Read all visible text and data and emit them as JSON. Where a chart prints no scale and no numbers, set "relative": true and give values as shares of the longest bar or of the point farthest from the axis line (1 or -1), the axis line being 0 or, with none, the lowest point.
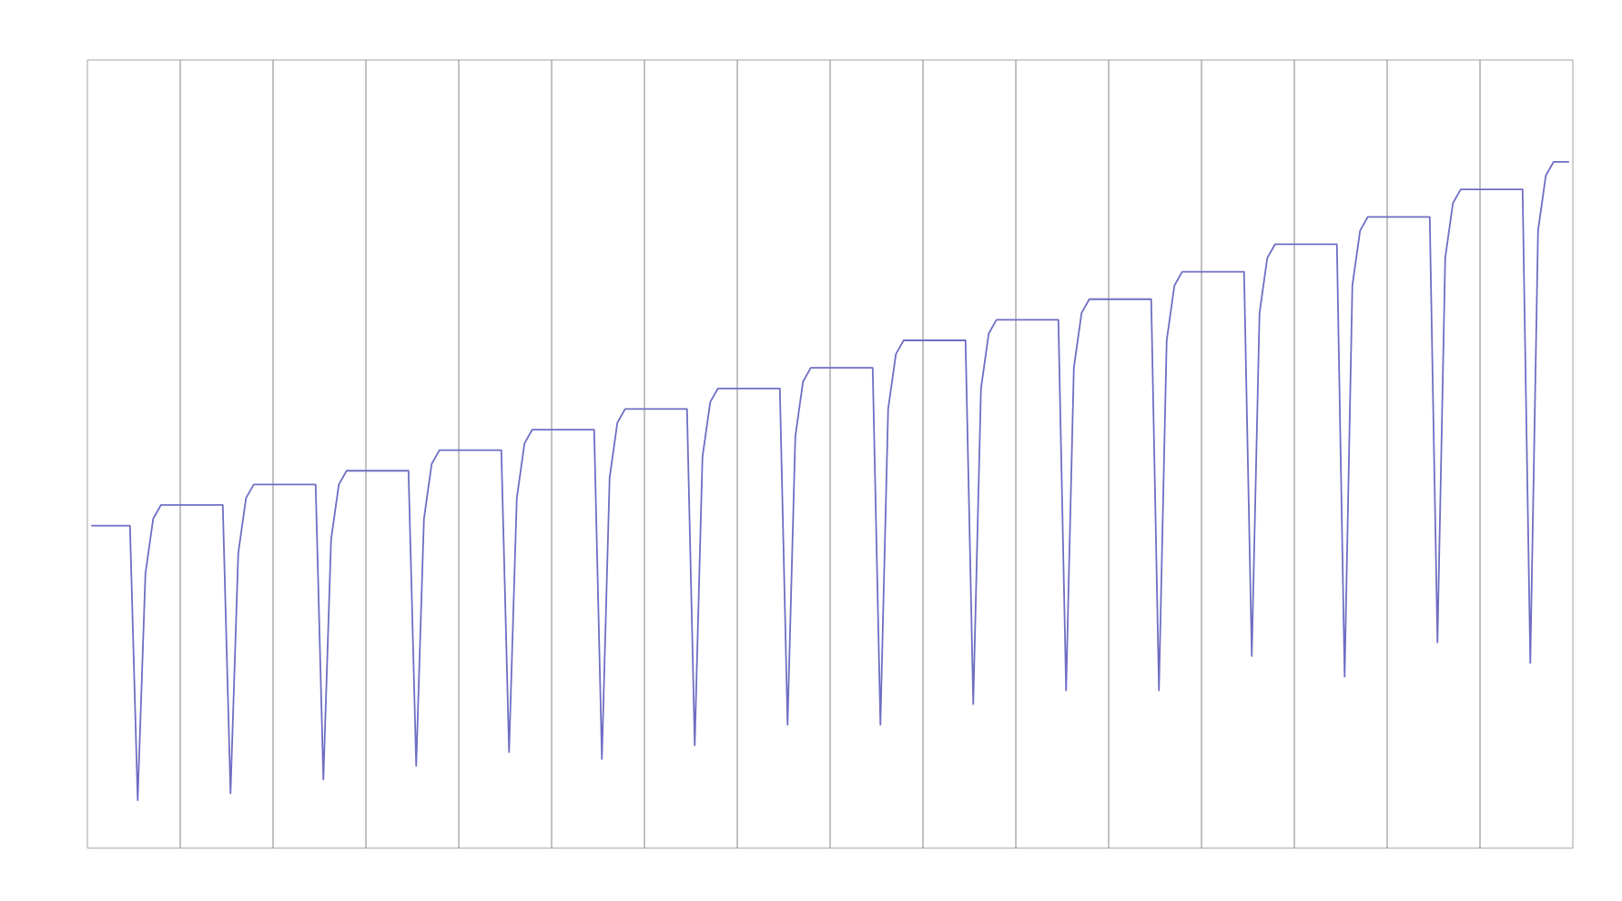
{
  "chart_data": {
    "type": "line",
    "relative": true,
    "grid": "x",
    "marker": "none",
    "line_style": "solid",
    "categories": [
      null,
      null,
      null,
      null,
      null,
      null,
      null,
      null,
      null,
      null,
      null,
      null,
      null,
      null,
      null,
      null,
      null,
      null,
      null,
      null,
      null,
      null,
      null,
      null,
      null,
      null,
      null,
      null,
      null,
      null,
      null,
      null,
      null,
      null,
      null,
      null,
      null,
      null,
      null,
      null,
      null,
      null,
      null,
      null,
      null,
      null,
      null,
      null,
      null,
      null,
      null,
      null,
      null,
      null,
      null,
      null,
      null,
      null,
      null,
      null,
      null,
      null,
      null,
      null,
      null,
      null,
      null,
      null,
      null,
      null,
      null,
      null,
      null,
      null,
      null,
      null,
      null,
      null,
      null,
      null,
      null,
      null,
      null,
      null,
      null,
      null,
      null,
      null,
      null,
      null,
      null,
      null,
      null,
      null,
      null,
      null,
      null,
      null,
      null,
      null,
      null,
      null,
      null,
      null,
      null,
      null,
      null,
      null,
      null,
      null,
      null,
      null,
      null,
      null,
      null,
      null,
      null,
      null,
      null,
      null,
      null,
      null,
      null,
      null,
      null,
      null,
      null,
      null,
      null,
      null,
      null,
      null,
      null,
      null,
      null,
      null,
      null,
      null,
      null,
      null,
      null,
      null,
      null,
      null,
      null,
      null,
      null,
      null,
      null,
      null,
      null,
      null,
      null,
      null,
      null,
      null,
      null,
      null,
      null,
      null,
      null,
      null,
      null,
      null,
      null,
      null,
      null,
      null,
      null,
      null,
      null,
      null,
      null,
      null,
      null,
      null,
      null,
      null,
      null,
      null,
      null,
      null,
      null,
      null,
      null,
      null,
      null,
      null,
      null,
      null,
      null,
      null
    ],
    "series": [
      {
        "color": "#6e6ec4",
        "values": [
          0.47,
          0.47,
          0.47,
          0.47,
          0.47,
          0.47,
          0.07,
          0.4,
          0.48,
          0.5,
          0.5,
          0.5,
          0.5,
          0.5,
          0.5,
          0.5,
          0.5,
          0.5,
          0.08,
          0.43,
          0.51,
          0.53,
          0.53,
          0.53,
          0.53,
          0.53,
          0.53,
          0.53,
          0.53,
          0.53,
          0.1,
          0.45,
          0.53,
          0.55,
          0.55,
          0.55,
          0.55,
          0.55,
          0.55,
          0.55,
          0.55,
          0.55,
          0.12,
          0.48,
          0.56,
          0.58,
          0.58,
          0.58,
          0.58,
          0.58,
          0.58,
          0.58,
          0.58,
          0.58,
          0.14,
          0.51,
          0.59,
          0.61,
          0.61,
          0.61,
          0.61,
          0.61,
          0.61,
          0.61,
          0.61,
          0.61,
          0.13,
          0.54,
          0.62,
          0.64,
          0.64,
          0.64,
          0.64,
          0.64,
          0.64,
          0.64,
          0.64,
          0.64,
          0.15,
          0.57,
          0.65,
          0.67,
          0.67,
          0.67,
          0.67,
          0.67,
          0.67,
          0.67,
          0.67,
          0.67,
          0.18,
          0.6,
          0.68,
          0.7,
          0.7,
          0.7,
          0.7,
          0.7,
          0.7,
          0.7,
          0.7,
          0.7,
          0.18,
          0.64,
          0.72,
          0.74,
          0.74,
          0.74,
          0.74,
          0.74,
          0.74,
          0.74,
          0.74,
          0.74,
          0.21,
          0.67,
          0.75,
          0.77,
          0.77,
          0.77,
          0.77,
          0.77,
          0.77,
          0.77,
          0.77,
          0.77,
          0.23,
          0.7,
          0.78,
          0.8,
          0.8,
          0.8,
          0.8,
          0.8,
          0.8,
          0.8,
          0.8,
          0.8,
          0.23,
          0.74,
          0.82,
          0.84,
          0.84,
          0.84,
          0.84,
          0.84,
          0.84,
          0.84,
          0.84,
          0.84,
          0.28,
          0.78,
          0.86,
          0.88,
          0.88,
          0.88,
          0.88,
          0.88,
          0.88,
          0.88,
          0.88,
          0.88,
          0.25,
          0.82,
          0.9,
          0.92,
          0.92,
          0.92,
          0.92,
          0.92,
          0.92,
          0.92,
          0.92,
          0.92,
          0.3,
          0.86,
          0.94,
          0.96,
          0.96,
          0.96,
          0.96,
          0.96,
          0.96,
          0.96,
          0.96,
          0.96,
          0.27,
          0.9,
          0.98,
          1.0,
          1.0,
          1.0
        ]
      }
    ]
  }
}
